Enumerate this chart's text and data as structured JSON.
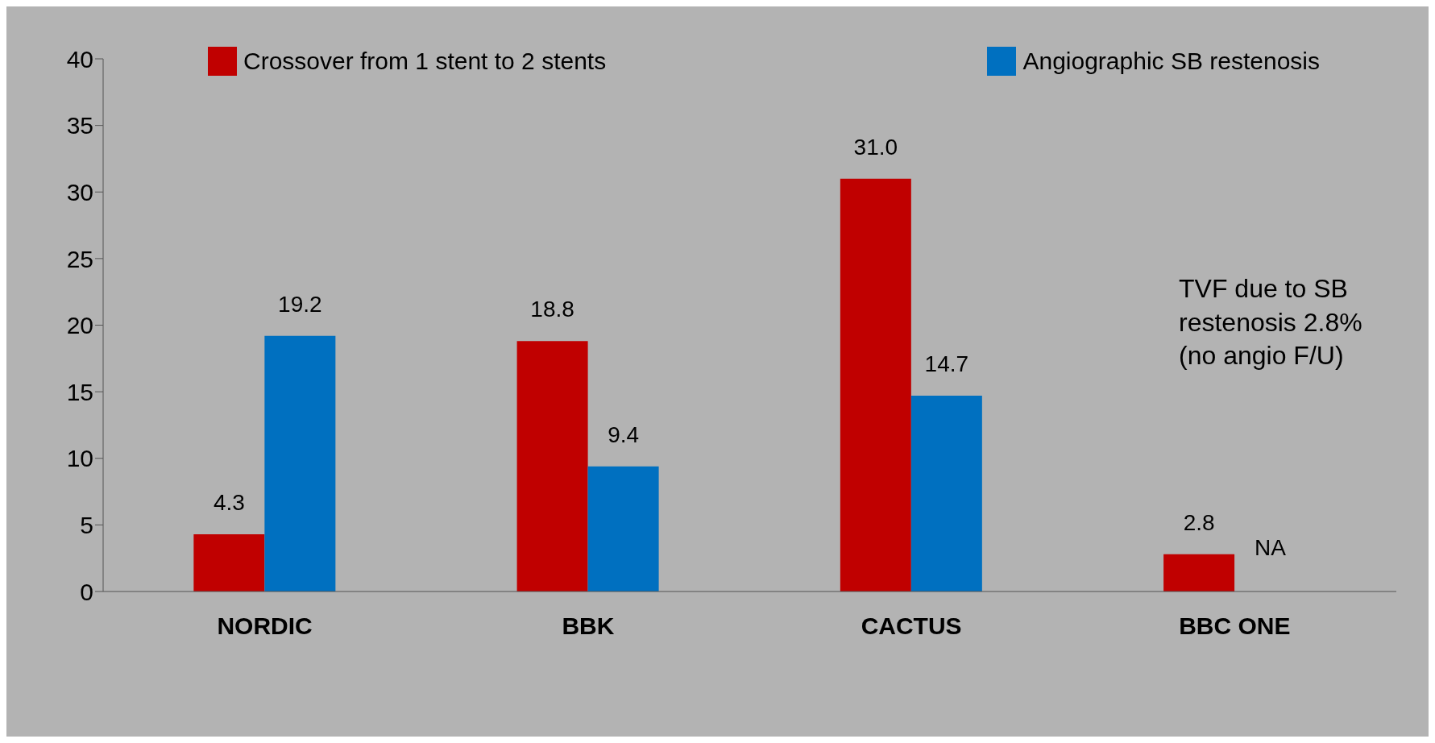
{
  "chart_data": {
    "type": "bar",
    "categories": [
      "NORDIC",
      "BBK",
      "CACTUS",
      "BBC ONE"
    ],
    "series": [
      {
        "name": "Crossover from 1 stent to 2 stents",
        "color": "#c00000",
        "values": [
          4.3,
          18.8,
          31.0,
          2.8
        ],
        "value_labels": [
          "4.3",
          "18.8",
          "31.0",
          "2.8"
        ]
      },
      {
        "name": "Angiographic SB restenosis",
        "color": "#0070c0",
        "values": [
          19.2,
          9.4,
          14.7,
          null
        ],
        "value_labels": [
          "19.2",
          "9.4",
          "14.7",
          "NA"
        ]
      }
    ],
    "ylim": [
      0,
      40
    ],
    "yticks": [
      0,
      5,
      10,
      15,
      20,
      25,
      30,
      35,
      40
    ],
    "grid": false,
    "legend": "top",
    "annotations": [
      "TVF due to SB restenosis 2.8% (no angio F/U)"
    ]
  }
}
